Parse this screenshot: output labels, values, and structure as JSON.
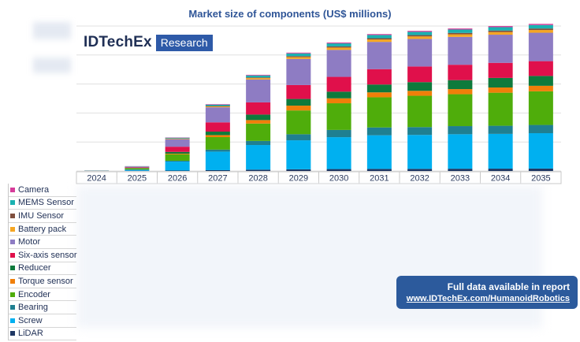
{
  "chart_data": {
    "type": "bar",
    "stacked": true,
    "title": "Market size of components (US$ millions)",
    "categories": [
      "2024",
      "2025",
      "2026",
      "2027",
      "2028",
      "2029",
      "2030",
      "2031",
      "2032",
      "2033",
      "2034",
      "2035"
    ],
    "ylim": [
      0,
      25000
    ],
    "yticks": [
      0,
      5000,
      10000,
      15000,
      20000,
      25000
    ],
    "series": [
      {
        "name": "LiDAR",
        "color": "#1f3864",
        "values": [
          8,
          40,
          70,
          140,
          230,
          290,
          330,
          360,
          370,
          390,
          400,
          420
        ]
      },
      {
        "name": "Screw",
        "color": "#00b0f0",
        "values": [
          30,
          150,
          1550,
          3200,
          4250,
          5000,
          5500,
          5800,
          5850,
          5950,
          6000,
          6100
        ]
      },
      {
        "name": "Bearing",
        "color": "#1f7f91",
        "values": [
          5,
          70,
          150,
          350,
          700,
          1050,
          1250,
          1350,
          1350,
          1400,
          1400,
          1420
        ]
      },
      {
        "name": "Encoder",
        "color": "#4fad0b",
        "values": [
          10,
          180,
          1100,
          2150,
          3000,
          4100,
          4600,
          5200,
          5400,
          5500,
          5700,
          5800
        ]
      },
      {
        "name": "Torque sensor",
        "color": "#f07f09",
        "values": [
          3,
          40,
          120,
          350,
          600,
          830,
          850,
          850,
          850,
          880,
          900,
          950
        ]
      },
      {
        "name": "Reducer",
        "color": "#0e7a3c",
        "values": [
          5,
          60,
          300,
          600,
          950,
          1150,
          1150,
          1350,
          1500,
          1550,
          1650,
          1700
        ]
      },
      {
        "name": "Six-axis sensor",
        "color": "#e0104b",
        "values": [
          8,
          80,
          900,
          1600,
          2100,
          2400,
          2550,
          2650,
          2700,
          2650,
          2600,
          2550
        ]
      },
      {
        "name": "Motor",
        "color": "#8e7cc3",
        "values": [
          15,
          150,
          1300,
          2600,
          3950,
          4500,
          4650,
          4700,
          4750,
          4800,
          4850,
          4900
        ]
      },
      {
        "name": "Battery pack",
        "color": "#f5a623",
        "values": [
          2,
          20,
          90,
          150,
          230,
          320,
          400,
          420,
          430,
          450,
          460,
          470
        ]
      },
      {
        "name": "IMU Sensor",
        "color": "#7f4f3f",
        "values": [
          1,
          10,
          40,
          70,
          120,
          160,
          200,
          220,
          230,
          240,
          250,
          260
        ]
      },
      {
        "name": "MEMS Sensor",
        "color": "#1ab1b1",
        "values": [
          2,
          30,
          120,
          230,
          350,
          480,
          520,
          550,
          560,
          580,
          590,
          600
        ]
      },
      {
        "name": "Camera",
        "color": "#d63c9a",
        "values": [
          1,
          10,
          50,
          90,
          110,
          130,
          150,
          160,
          170,
          180,
          190,
          200
        ]
      }
    ],
    "grid": true,
    "legend_position": "bottom-left table"
  },
  "branding": {
    "name": "IDTechEx",
    "tag": "Research"
  },
  "notice": {
    "line1": "Full data available in report",
    "line2": "www.IDTechEx.com/HumanoidRobotics"
  }
}
